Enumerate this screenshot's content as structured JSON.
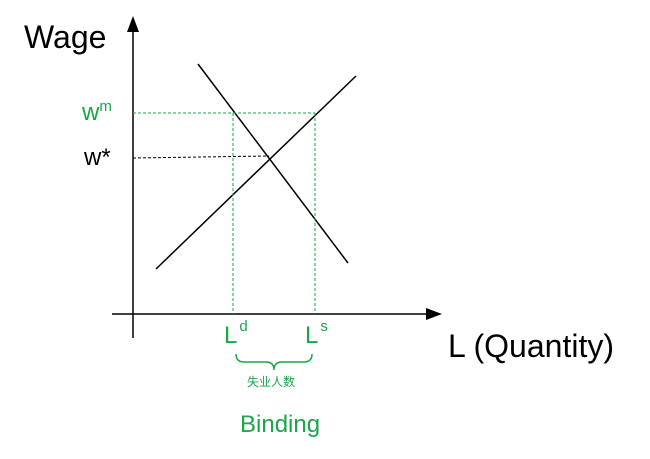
{
  "diagram": {
    "y_axis_label": "Wage",
    "x_axis_label": "L (Quantity)",
    "wm_label": {
      "base": "w",
      "sup": "m"
    },
    "wstar_label": "w*",
    "ld_label": {
      "base": "L",
      "sup": "d"
    },
    "ls_label": {
      "base": "L",
      "sup": "s"
    },
    "unemployment_label": "失业人数",
    "binding_label": "Binding",
    "colors": {
      "axes": "#000000",
      "curves": "#000000",
      "minimum_wage_guides": "#1aa64a",
      "equilibrium_guide": "#000000",
      "green_text": "#1aa64a"
    }
  }
}
